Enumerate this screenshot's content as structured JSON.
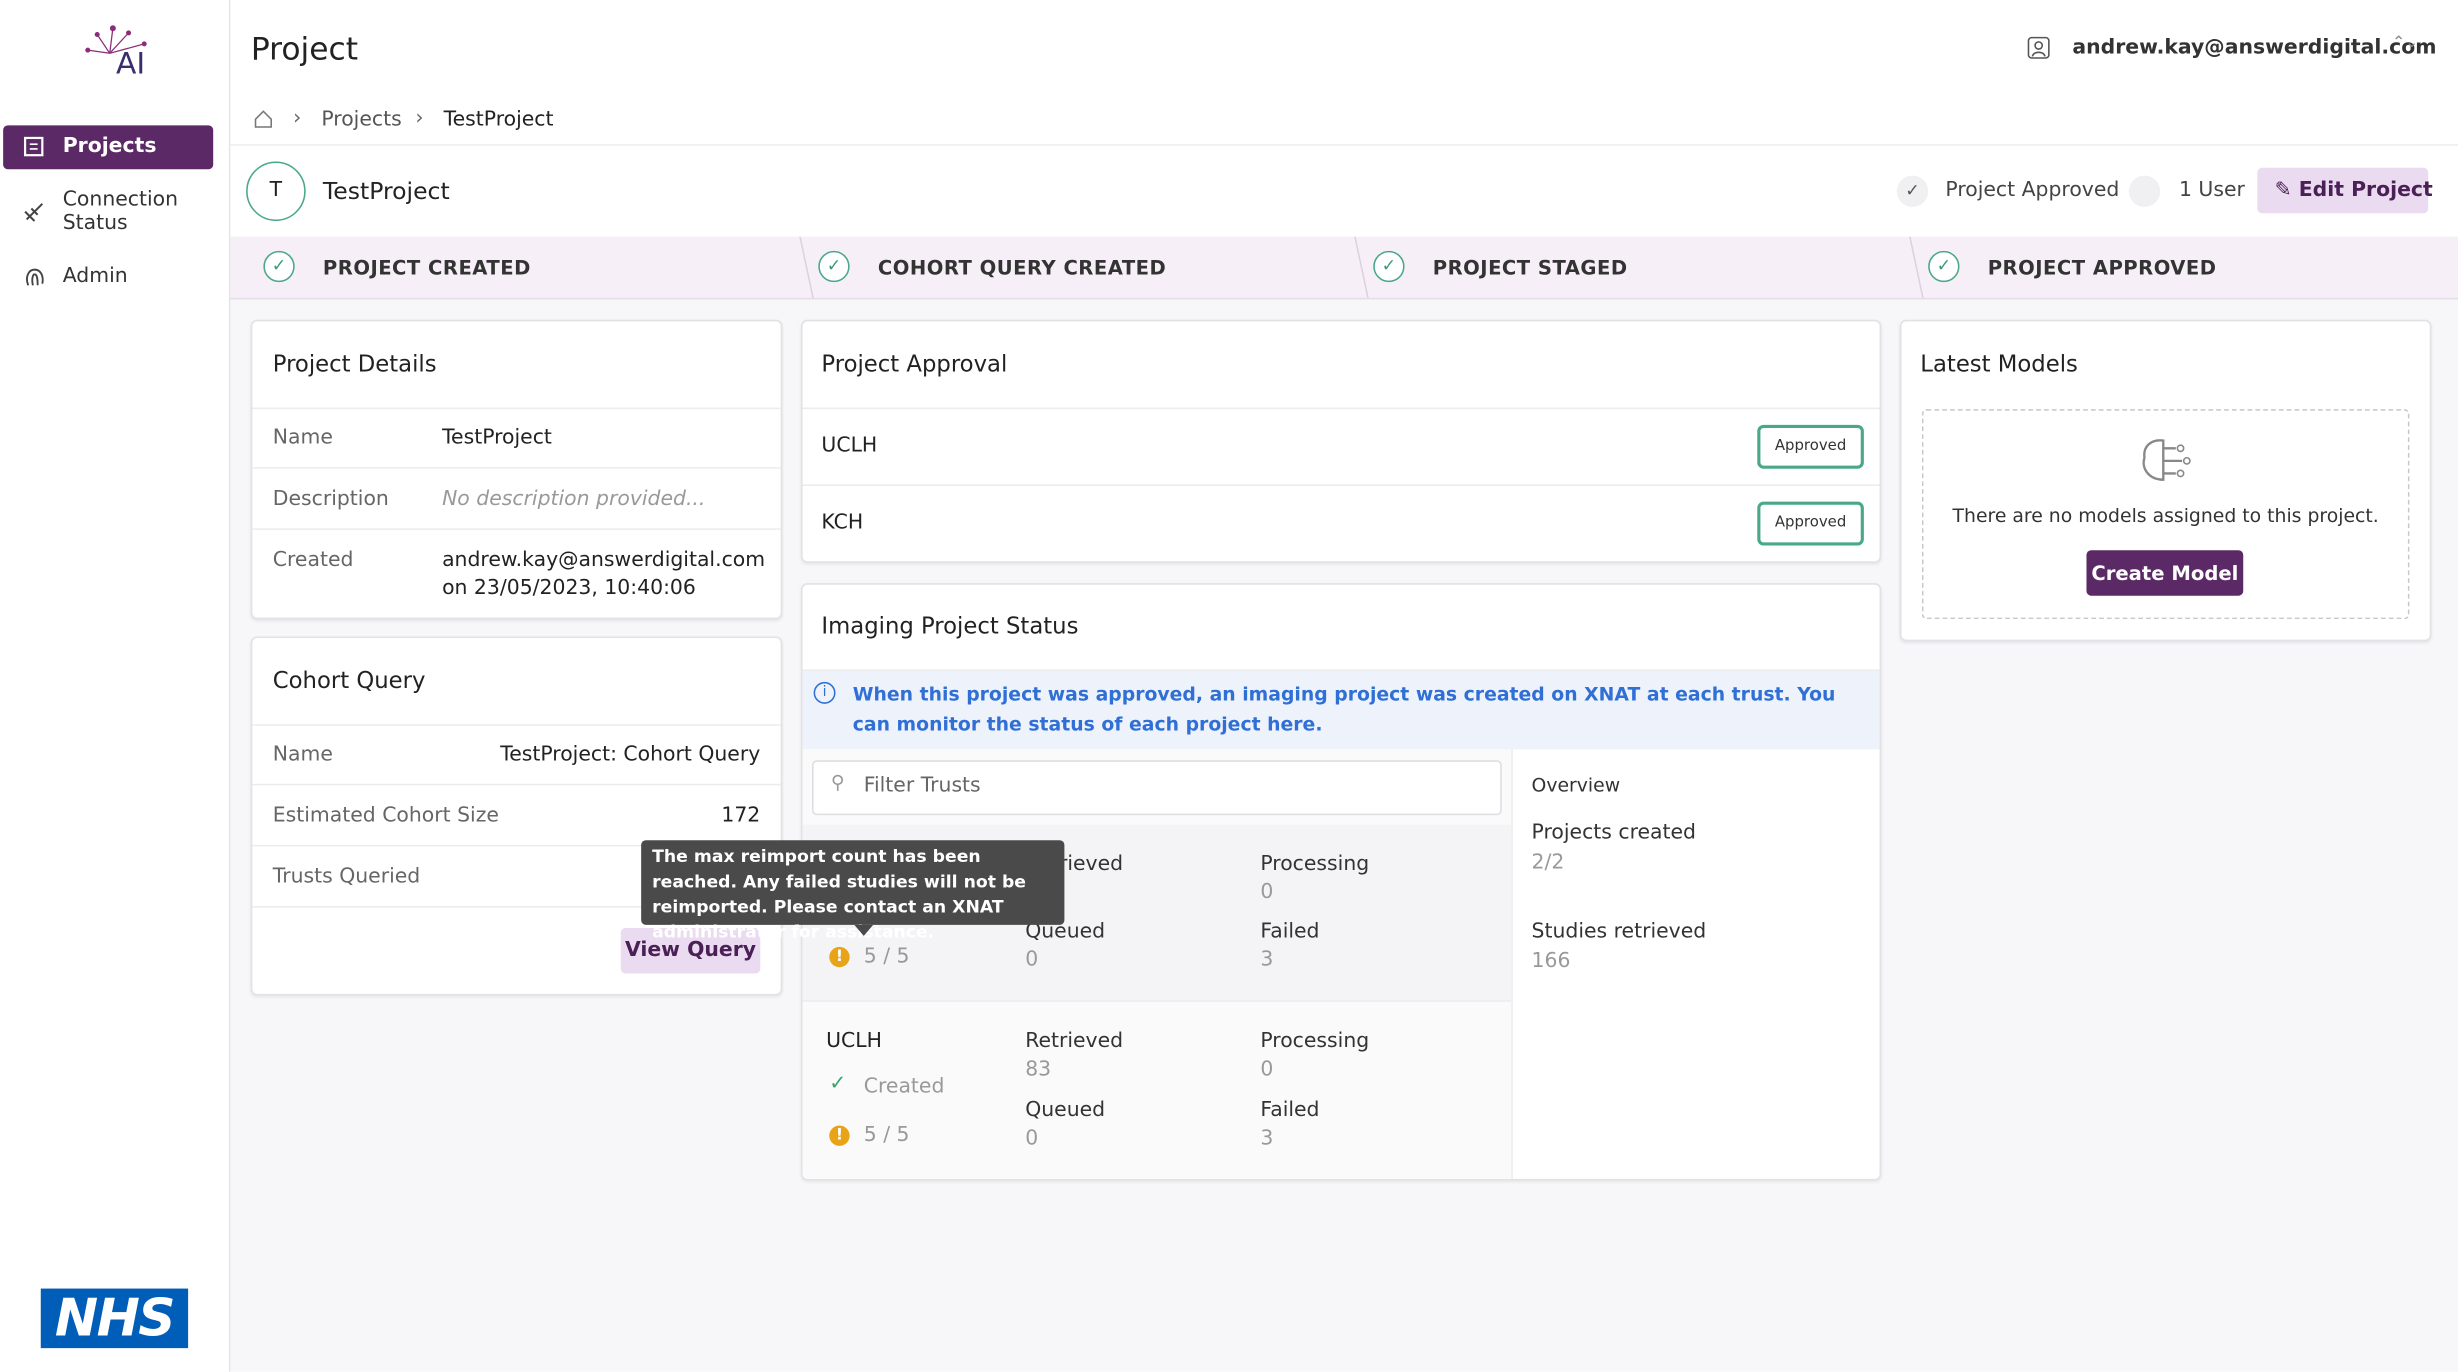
{
  "sidebar": {
    "logo": "AI",
    "nav": [
      "Projects",
      "Connection Status",
      "Admin"
    ],
    "footer_logo": "NHS"
  },
  "header": {
    "title": "Project",
    "user": "andrew.kay@answerdigital.com"
  },
  "breadcrumb": [
    "Projects",
    "TestProject"
  ],
  "project": {
    "initial": "T",
    "name": "TestProject",
    "status": "Project Approved",
    "users": "1 User",
    "edit_button": "Edit Project"
  },
  "steps": [
    "PROJECT CREATED",
    "COHORT QUERY CREATED",
    "PROJECT STAGED",
    "PROJECT APPROVED"
  ],
  "project_details": {
    "title": "Project Details",
    "rows": [
      [
        "Name",
        "TestProject"
      ],
      [
        "Description",
        "No description provided..."
      ],
      [
        "Created",
        "andrew.kay@answerdigital.com",
        "on 23/05/2023, 10:40:06"
      ]
    ]
  },
  "cohort_query": {
    "title": "Cohort Query",
    "rows": [
      [
        "Name",
        "TestProject: Cohort Query"
      ],
      [
        "Estimated Cohort Size",
        "172"
      ],
      [
        "Trusts Queried",
        ""
      ]
    ],
    "button": "View Query"
  },
  "approval": {
    "title": "Project Approval",
    "rows": [
      [
        "UCLH",
        "Approved"
      ],
      [
        "KCH",
        "Approved"
      ]
    ]
  },
  "imaging": {
    "title": "Imaging Project Status",
    "info": "When this project was approved, an imaging project was created on XNAT at each trust. You can monitor the status of each project here.",
    "filter_placeholder": "Filter Trusts",
    "trusts": [
      {
        "count": "5 / 5",
        "retrieved_label": "Retrieved",
        "queued_label": "Queued",
        "queued": "0",
        "processing_label": "Processing",
        "processing": "0",
        "failed_label": "Failed",
        "failed": "3"
      },
      {
        "name": "UCLH",
        "status": "Created",
        "count": "5 / 5",
        "retrieved_label": "Retrieved",
        "retrieved": "83",
        "queued_label": "Queued",
        "queued": "0",
        "processing_label": "Processing",
        "processing": "0",
        "failed_label": "Failed",
        "failed": "3"
      }
    ],
    "overview": {
      "title": "Overview",
      "items": [
        [
          "Projects created",
          "2/2"
        ],
        [
          "Studies retrieved",
          "166"
        ]
      ]
    },
    "tooltip": "The max reimport count has been reached. Any failed studies will not be reimported. Please contact an XNAT administrator for assistance."
  },
  "models": {
    "title": "Latest Models",
    "empty": "There are no models assigned to this project.",
    "button": "Create Model"
  }
}
